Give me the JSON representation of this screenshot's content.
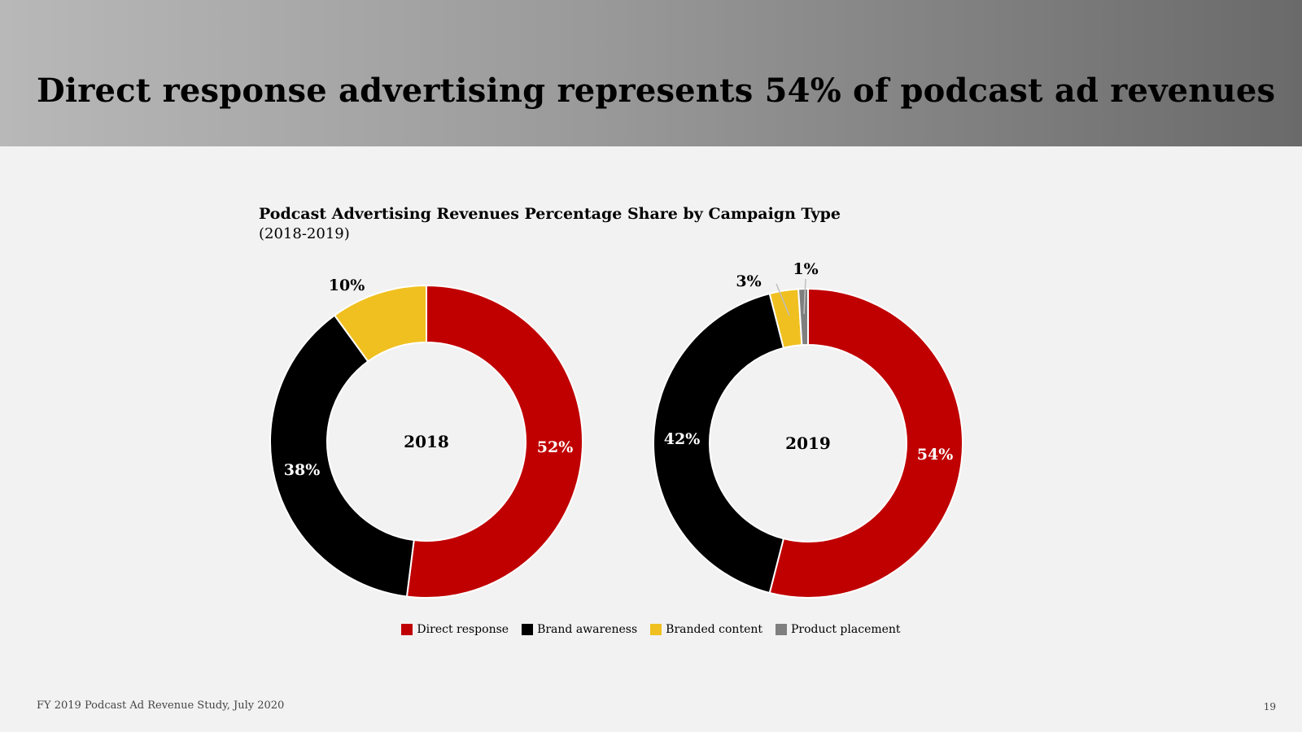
{
  "slide": {
    "title": "Direct response advertising represents 54% of podcast ad revenues",
    "footer": "FY 2019 Podcast Ad Revenue Study, July 2020",
    "page_number": "19"
  },
  "colors": {
    "direct_response": "#c00000",
    "brand_awareness": "#000000",
    "branded_content": "#f0c020",
    "product_placement": "#7f7f7f"
  },
  "chart_data": [
    {
      "type": "pie",
      "variant": "donut",
      "title": "Podcast Advertising Revenues Percentage Share by Campaign Type",
      "subtitle": "(2018-2019)",
      "center_label": "2018",
      "categories": [
        "Direct response",
        "Brand awareness",
        "Branded content",
        "Product placement"
      ],
      "values": [
        52,
        38,
        10,
        0
      ],
      "labels": [
        "52%",
        "38%",
        "10%",
        ""
      ],
      "legend": "bottom"
    },
    {
      "type": "pie",
      "variant": "donut",
      "center_label": "2019",
      "categories": [
        "Direct response",
        "Brand awareness",
        "Branded content",
        "Product placement"
      ],
      "values": [
        54,
        42,
        3,
        1
      ],
      "labels": [
        "54%",
        "42%",
        "3%",
        "1%"
      ],
      "legend": "bottom"
    }
  ],
  "legend": [
    {
      "label": "Direct response",
      "color": "#c00000"
    },
    {
      "label": "Brand awareness",
      "color": "#000000"
    },
    {
      "label": "Branded content",
      "color": "#f0c020"
    },
    {
      "label": "Product placement",
      "color": "#7f7f7f"
    }
  ]
}
